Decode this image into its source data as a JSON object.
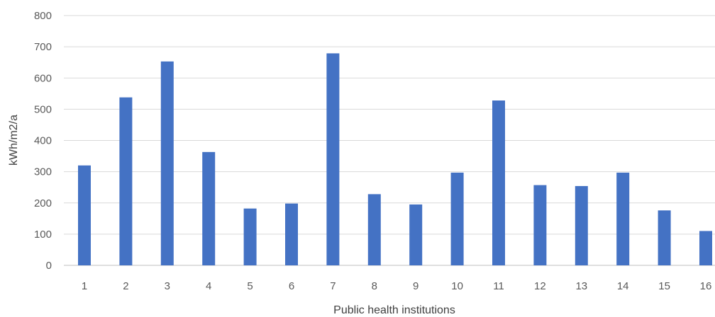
{
  "chart_data": {
    "type": "bar",
    "title": "",
    "xlabel": "Public health institutions",
    "ylabel": "kWh/m2/a",
    "categories": [
      "1",
      "2",
      "3",
      "4",
      "5",
      "6",
      "7",
      "8",
      "9",
      "10",
      "11",
      "12",
      "13",
      "14",
      "15",
      "16"
    ],
    "series": [
      {
        "values": [
          320,
          538,
          653,
          363,
          182,
          198,
          679,
          228,
          195,
          297,
          528,
          257,
          254,
          297,
          176,
          110
        ]
      }
    ],
    "ylim": [
      0,
      800
    ],
    "yticks": [
      0,
      100,
      200,
      300,
      400,
      500,
      600,
      700,
      800
    ],
    "grid": true,
    "legend": "none",
    "colors": {
      "bar": "#4472C4",
      "grid": "#D9D9D9",
      "axis": "#BFBFBF"
    }
  }
}
